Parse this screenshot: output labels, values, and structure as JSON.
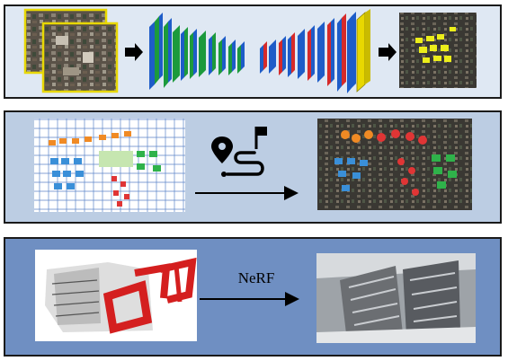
{
  "panels": [
    {
      "id": "segmentation"
    },
    {
      "id": "generation"
    },
    {
      "id": "reconstruction",
      "arrow_label": "NeRF"
    }
  ]
}
